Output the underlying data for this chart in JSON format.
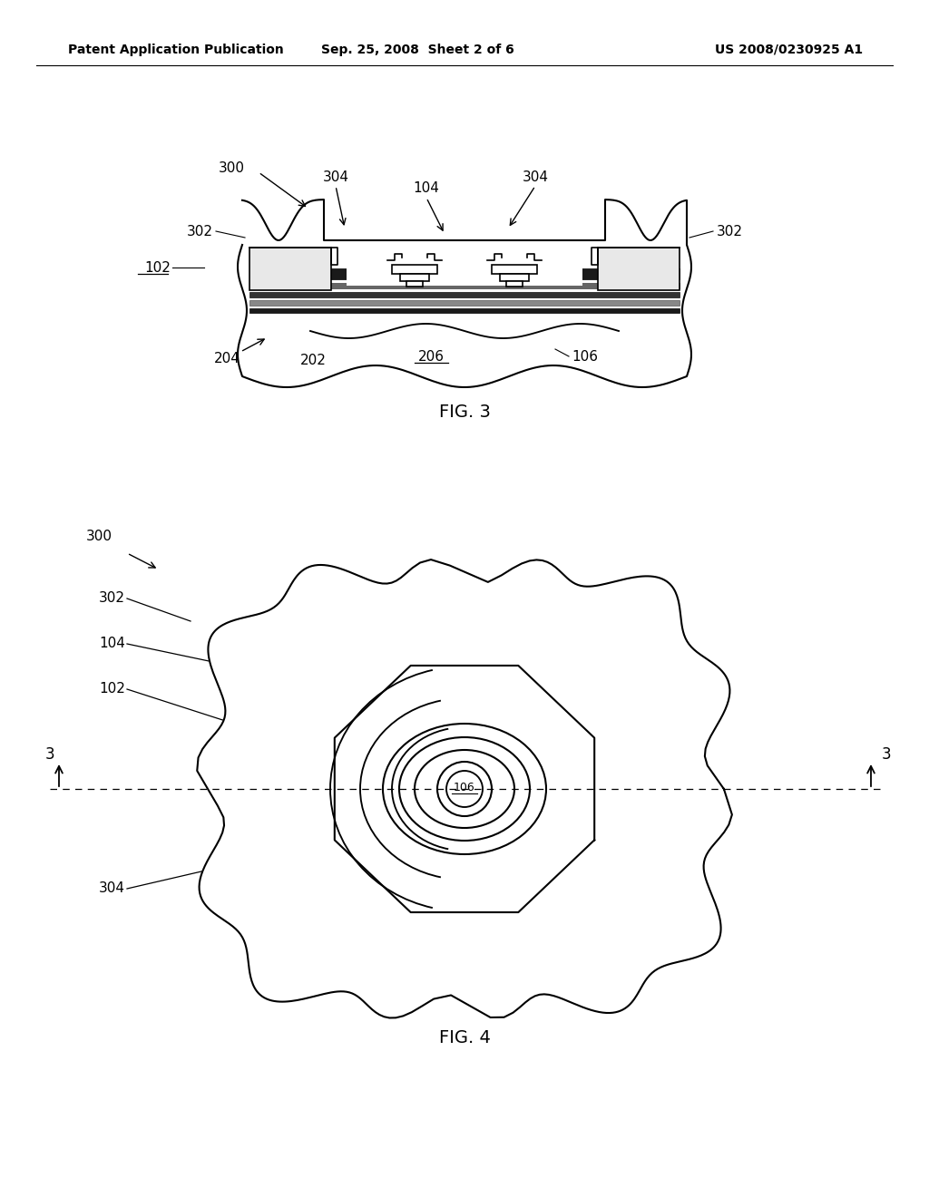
{
  "bg_color": "#ffffff",
  "line_color": "#000000",
  "header_left": "Patent Application Publication",
  "header_center": "Sep. 25, 2008  Sheet 2 of 6",
  "header_right": "US 2008/0230925 A1",
  "fig3_caption": "FIG. 3",
  "fig4_caption": "FIG. 4"
}
